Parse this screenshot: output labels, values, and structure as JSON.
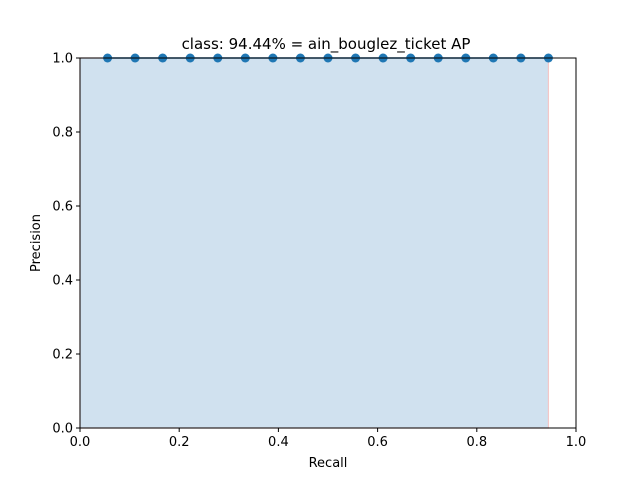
{
  "chart_data": {
    "type": "area",
    "title": "class: 94.44% = ain_bouglez_ticket AP",
    "xlabel": "Recall",
    "ylabel": "Precision",
    "xlim": [
      0.0,
      1.0
    ],
    "ylim": [
      0.0,
      1.0
    ],
    "xticks": [
      "0.0",
      "0.2",
      "0.4",
      "0.6",
      "0.8",
      "1.0"
    ],
    "yticks": [
      "0.0",
      "0.2",
      "0.4",
      "0.6",
      "0.8",
      "1.0"
    ],
    "grid": false,
    "series": [
      {
        "x": [
          0.0556,
          0.1111,
          0.1667,
          0.2222,
          0.2778,
          0.3333,
          0.3889,
          0.4444,
          0.5,
          0.5556,
          0.6111,
          0.6667,
          0.7222,
          0.7778,
          0.8333,
          0.8889,
          0.9444
        ],
        "y": [
          1,
          1,
          1,
          1,
          1,
          1,
          1,
          1,
          1,
          1,
          1,
          1,
          1,
          1,
          1,
          1,
          1
        ]
      }
    ],
    "area": {
      "x": [
        0.0,
        0.0,
        0.9444,
        0.9444
      ],
      "y": [
        0.0,
        1.0,
        1.0,
        0.0
      ]
    },
    "colors": {
      "line": "#1f77b4",
      "fill": "#d0e1ef",
      "area_edge": "#f4c7c7"
    }
  }
}
